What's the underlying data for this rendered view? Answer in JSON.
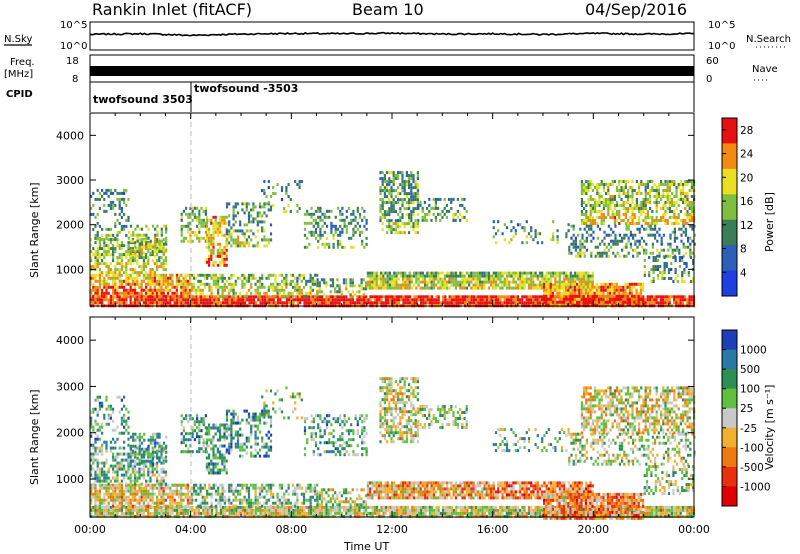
{
  "header": {
    "station": "Rankin Inlet (fitACF)",
    "beam": "Beam 10",
    "date": "04/Sep/2016"
  },
  "labels": {
    "nsky": "N.Sky",
    "nsearch": "N.Search",
    "freq_line1": "Freq.",
    "freq_line2": "[MHz]",
    "nave": "Nave",
    "cpid": "CPID",
    "cpid_first": "twofsound 3503",
    "cpid_second": "twofsound -3503",
    "power_ylabel": "Slant Range [km]",
    "velocity_ylabel": "Slant Range [km]",
    "power_cbar": "Power [dB]",
    "velocity_cbar": "Velocity [m s⁻¹]",
    "xlabel": "Time UT",
    "noise_ticks": [
      "10^5",
      "10^0"
    ],
    "noise_right_ticks": [
      "10^5",
      "10^0"
    ],
    "freq_ticks": [
      "18",
      "8"
    ],
    "nave_ticks": [
      "60",
      "0"
    ]
  },
  "chart_data": [
    {
      "type": "line",
      "panel": "noise",
      "title": "",
      "ylabel": "N.Sky",
      "y2label": "N.Search",
      "yscale": "log",
      "ylim": [
        1,
        100000
      ],
      "x": [
        "00:00",
        "02:00",
        "04:00",
        "06:00",
        "08:00",
        "10:00",
        "12:00",
        "14:00",
        "16:00",
        "18:00",
        "20:00",
        "22:00",
        "24:00"
      ],
      "series": [
        {
          "name": "N.Sky",
          "values": [
            600,
            800,
            400,
            700,
            900,
            800,
            1000,
            700,
            800,
            600,
            900,
            700,
            800
          ]
        }
      ]
    },
    {
      "type": "line",
      "panel": "frequency",
      "ylabel": "Freq. [MHz]",
      "ylim": [
        8,
        18
      ],
      "y2label": "Nave",
      "y2lim": [
        0,
        60
      ],
      "series": [
        {
          "name": "Freq.",
          "values": [
            10.8,
            10.8,
            10.8,
            10.8,
            10.8,
            10.8,
            10.8,
            10.8,
            10.8,
            10.8,
            10.8,
            10.8,
            10.8
          ]
        }
      ]
    },
    {
      "type": "heatmap",
      "panel": "power",
      "xlabel": "",
      "ylabel": "Slant Range [km]",
      "xlim": [
        "00:00",
        "00:00"
      ],
      "xticks": [
        "00:00",
        "04:00",
        "08:00",
        "12:00",
        "16:00",
        "20:00",
        "00:00"
      ],
      "ylim": [
        180,
        4500
      ],
      "yticks": [
        1000,
        2000,
        3000,
        4000
      ],
      "colorbar": {
        "label": "Power [dB]",
        "ticks": [
          4,
          8,
          12,
          16,
          20,
          24,
          28
        ],
        "range": [
          0,
          30
        ],
        "colors": [
          "#1f3fe0",
          "#2c5fb8",
          "#3a7e55",
          "#7fbf3f",
          "#e8e020",
          "#f08a10",
          "#e81010"
        ]
      }
    },
    {
      "type": "heatmap",
      "panel": "velocity",
      "xlabel": "Time UT",
      "ylabel": "Slant Range [km]",
      "xlim": [
        "00:00",
        "00:00"
      ],
      "xticks": [
        "00:00",
        "04:00",
        "08:00",
        "12:00",
        "16:00",
        "20:00",
        "00:00"
      ],
      "ylim": [
        180,
        4500
      ],
      "yticks": [
        1000,
        2000,
        3000,
        4000
      ],
      "colorbar": {
        "label": "Velocity [m s⁻¹]",
        "ticks": [
          1000,
          500,
          100,
          25,
          -25,
          -100,
          -500,
          -1000
        ],
        "colors": [
          "#1c3fb8",
          "#2a78a8",
          "#2e8f55",
          "#5fc040",
          "#c8c8c8",
          "#f0b030",
          "#f07810",
          "#e83010",
          "#e00000"
        ]
      }
    }
  ]
}
